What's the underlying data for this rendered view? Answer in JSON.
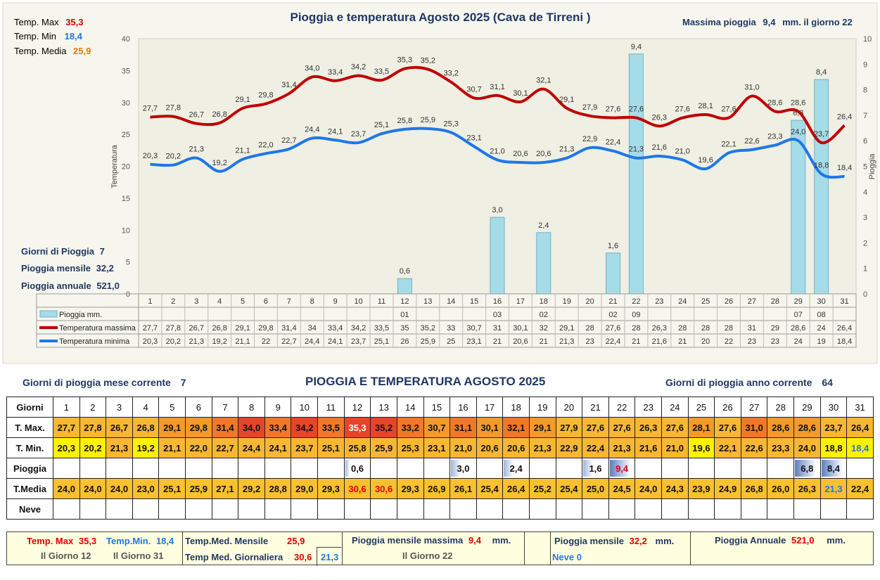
{
  "chart_data": {
    "type": "line+bar",
    "title": "Pioggia e temperatura Agosto 2025 (Cava de Tirreni )",
    "ylabel_left": "Temperatura",
    "ylabel_right": "Pioggia",
    "ylim_left": [
      0,
      40
    ],
    "ylim_right": [
      0,
      10
    ],
    "yticks_left": [
      "0",
      "5",
      "10",
      "15",
      "20",
      "25",
      "30",
      "35",
      "40"
    ],
    "yticks_right": [
      "0",
      "1",
      "2",
      "3",
      "4",
      "5",
      "6",
      "7",
      "8",
      "9",
      "10"
    ],
    "days": [
      "1",
      "2",
      "3",
      "4",
      "5",
      "6",
      "7",
      "8",
      "9",
      "10",
      "11",
      "12",
      "13",
      "14",
      "15",
      "16",
      "17",
      "18",
      "19",
      "20",
      "21",
      "22",
      "23",
      "24",
      "25",
      "26",
      "27",
      "28",
      "29",
      "30",
      "31"
    ],
    "tmax": [
      27.7,
      27.8,
      26.7,
      26.8,
      29.1,
      29.8,
      31.4,
      34.0,
      33.4,
      34.2,
      33.5,
      35.3,
      35.2,
      33.2,
      30.7,
      31.1,
      30.1,
      32.1,
      29.1,
      27.9,
      27.6,
      27.6,
      26.3,
      27.6,
      28.1,
      27.6,
      31.0,
      28.6,
      28.6,
      23.7,
      26.4
    ],
    "tmin": [
      20.3,
      20.2,
      21.3,
      19.2,
      21.1,
      22.0,
      22.7,
      24.4,
      24.1,
      23.7,
      25.1,
      25.8,
      25.9,
      25.3,
      23.1,
      21.0,
      20.6,
      20.6,
      21.3,
      22.9,
      22.4,
      21.3,
      21.6,
      21.0,
      19.6,
      22.1,
      22.6,
      23.3,
      24.0,
      18.8,
      18.4
    ],
    "tmax_labels": [
      "27,7",
      "27,8",
      "26,7",
      "26,8",
      "29,1",
      "29,8",
      "31,4",
      "34,0",
      "33,4",
      "34,2",
      "33,5",
      "35,3",
      "35,2",
      "33,2",
      "30,7",
      "31,1",
      "30,1",
      "32,1",
      "29,1",
      "27,9",
      "27,6",
      "27,6",
      "26,3",
      "27,6",
      "28,1",
      "27,6",
      "31,0",
      "28,6",
      "28,6",
      "23,7",
      "26,4"
    ],
    "tmin_labels": [
      "20,3",
      "20,2",
      "21,3",
      "19,2",
      "21,1",
      "22,0",
      "22,7",
      "24,4",
      "24,1",
      "23,7",
      "25,1",
      "25,8",
      "25,9",
      "25,3",
      "23,1",
      "21,0",
      "20,6",
      "20,6",
      "21,3",
      "22,9",
      "22,4",
      "21,3",
      "21,6",
      "21,0",
      "19,6",
      "22,1",
      "22,6",
      "23,3",
      "24,0",
      "18,8",
      "18,4"
    ],
    "rain": [
      0,
      0,
      0,
      0,
      0,
      0,
      0,
      0,
      0,
      0,
      0,
      0.6,
      0,
      0,
      0,
      3.0,
      0,
      2.4,
      0,
      0,
      1.6,
      9.4,
      0,
      0,
      0,
      0,
      0,
      0,
      6.8,
      8.4,
      0
    ],
    "rain_labels": [
      "",
      "",
      "",
      "",
      "",
      "",
      "",
      "",
      "",
      "",
      "",
      "0,6",
      "",
      "",
      "",
      "3,0",
      "",
      "2,4",
      "",
      "",
      "1,6",
      "9,4",
      "",
      "",
      "",
      "",
      "",
      "",
      "6,8",
      "8,4",
      ""
    ],
    "colors": {
      "tmax": "#c00000",
      "tmin": "#1f77e8",
      "bar": "#a6dbe8",
      "plot_bg": "#efefe3",
      "outer_bg": "#f6f6ee"
    },
    "legend": {
      "rain": "Pioggia mm.",
      "tmax": "Temperatura massima",
      "tmin": "Temperatura minima"
    },
    "table_rain_row": [
      "",
      "",
      "",
      "",
      "",
      "",
      "",
      "",
      "",
      "",
      "",
      "01",
      "",
      "",
      "",
      "03",
      "",
      "02",
      "",
      "",
      "02",
      "09",
      "",
      "",
      "",
      "",
      "",
      "",
      "07",
      "08",
      ""
    ],
    "table_tmax_row": [
      "27,7",
      "27,8",
      "26,7",
      "26,8",
      "29,1",
      "29,8",
      "31,4",
      "34",
      "33,4",
      "34,2",
      "33,5",
      "35",
      "35,2",
      "33",
      "30,7",
      "31",
      "30,1",
      "32",
      "29,1",
      "28",
      "27,6",
      "28",
      "26,3",
      "28",
      "28",
      "28",
      "31",
      "29",
      "28,6",
      "24",
      "26,4"
    ],
    "table_tmin_row": [
      "20,3",
      "20,2",
      "21,3",
      "19,2",
      "21,1",
      "22",
      "22,7",
      "24,4",
      "24,1",
      "23,7",
      "25,1",
      "26",
      "25,9",
      "25",
      "23,1",
      "21",
      "20,6",
      "21",
      "21,3",
      "23",
      "22,4",
      "21",
      "21,6",
      "21",
      "20",
      "22",
      "23",
      "23",
      "24",
      "19",
      "18,4"
    ]
  },
  "left_stats": {
    "tmax_label": "Temp. Max",
    "tmax_value": "35,3",
    "tmin_label": "Temp. Min",
    "tmin_value": "18,4",
    "tmed_label": "Temp. Media",
    "tmed_value": "25,9",
    "rain_days_label": "Giorni di Pioggia",
    "rain_days_value": "7",
    "rain_month_label": "Pioggia mensile",
    "rain_month_value": "32,2",
    "rain_year_label": "Pioggia annuale",
    "rain_year_value": "521,0"
  },
  "max_rain": {
    "label": "Massima pioggia",
    "value": "9,4",
    "suffix": "mm. il giorno 22"
  },
  "lower": {
    "rain_days_month_label": "Giorni di pioggia mese corrente",
    "rain_days_month_value": "7",
    "title": "PIOGGIA E TEMPERATURA AGOSTO 2025",
    "rain_days_year_label": "Giorni di pioggia anno corrente",
    "rain_days_year_value": "64"
  },
  "table": {
    "row_labels": [
      "Giorni",
      "T. Max.",
      "T. Min.",
      "Pioggia",
      "T.Media",
      "Neve"
    ],
    "tmax": [
      "27,7",
      "27,8",
      "26,7",
      "26,8",
      "29,1",
      "29,8",
      "31,4",
      "34,0",
      "33,4",
      "34,2",
      "33,5",
      "35,3",
      "35,2",
      "33,2",
      "30,7",
      "31,1",
      "30,1",
      "32,1",
      "29,1",
      "27,9",
      "27,6",
      "27,6",
      "26,3",
      "27,6",
      "28,1",
      "27,6",
      "31,0",
      "28,6",
      "28,6",
      "23,7",
      "26,4"
    ],
    "tmin": [
      "20,3",
      "20,2",
      "21,3",
      "19,2",
      "21,1",
      "22,0",
      "22,7",
      "24,4",
      "24,1",
      "23,7",
      "25,1",
      "25,8",
      "25,9",
      "25,3",
      "23,1",
      "21,0",
      "20,6",
      "20,6",
      "21,3",
      "22,9",
      "22,4",
      "21,3",
      "21,6",
      "21,0",
      "19,6",
      "22,1",
      "22,6",
      "23,3",
      "24,0",
      "18,8",
      "18,4"
    ],
    "rain": [
      "",
      "",
      "",
      "",
      "",
      "",
      "",
      "",
      "",
      "",
      "",
      "0,6",
      "",
      "",
      "",
      "3,0",
      "",
      "2,4",
      "",
      "",
      "1,6",
      "9,4",
      "",
      "",
      "",
      "",
      "",
      "",
      "6,8",
      "8,4",
      ""
    ],
    "tmed": [
      "24,0",
      "24,0",
      "24,0",
      "23,0",
      "25,1",
      "25,9",
      "27,1",
      "29,2",
      "28,8",
      "29,0",
      "29,3",
      "30,6",
      "30,6",
      "29,3",
      "26,9",
      "26,1",
      "25,4",
      "26,4",
      "25,2",
      "25,4",
      "25,0",
      "24,5",
      "24,0",
      "24,3",
      "23,9",
      "24,9",
      "26,8",
      "26,0",
      "26,3",
      "21,3",
      "22,4"
    ],
    "neve": [
      "",
      "",
      "",
      "",
      "",
      "",
      "",
      "",
      "",
      "",
      "",
      "",
      "",
      "",
      "",
      "",
      "",
      "",
      "",
      "",
      "",
      "",
      "",
      "",
      "",
      "",
      "",
      "",
      "",
      "",
      ""
    ],
    "colors": {
      "tmax_hot": "#e8442a",
      "tmax_warm": "#f07828",
      "tmax_mild": "#f39a2a",
      "tmax_cool": "#f7b733",
      "tmin_warm": "#f7b733",
      "tmin_cool": "#fff200",
      "tmed": "#f9c030",
      "red_text": "#e00000",
      "blue_text": "#1f77e8"
    }
  },
  "summary": {
    "tmax_label": "Temp. Max",
    "tmax_value": "35,3",
    "tmin_label": "Temp.Min.",
    "tmin_value": "18,4",
    "tmax_day": "Il Giorno 12",
    "tmin_day": "Il Giorno 31",
    "tmed_month_label": "Temp.Med. Mensile",
    "tmed_month_value": "25,9",
    "tmed_daily_label": "Temp Med. Giornaliera",
    "tmed_daily_max": "30,6",
    "tmed_daily_min": "21,3",
    "rain_max_label": "Pioggia mensile massima",
    "rain_max_value": "9,4",
    "rain_max_unit": "mm.",
    "rain_max_day": "Il Giorno 22",
    "rain_month_label": "Pioggia mensile",
    "rain_month_value": "32,2",
    "rain_month_unit": "mm.",
    "snow_label": "Neve",
    "snow_value": "0",
    "rain_year_label": "Pioggia Annuale",
    "rain_year_value": "521,0",
    "rain_year_unit": "mm."
  }
}
